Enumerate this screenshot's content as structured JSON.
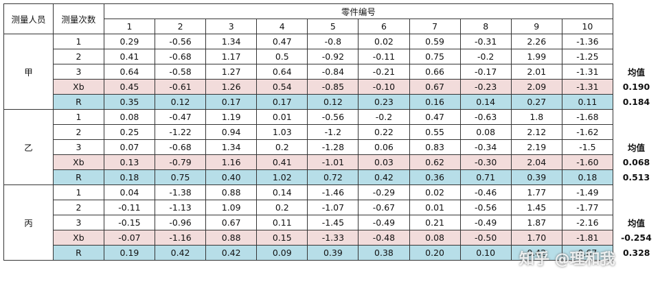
{
  "header": {
    "person": "测量人员",
    "count": "测量次数",
    "part_no": "零件编号",
    "parts": [
      "1",
      "2",
      "3",
      "4",
      "5",
      "6",
      "7",
      "8",
      "9",
      "10"
    ]
  },
  "groups": [
    {
      "person": "甲",
      "rows": [
        {
          "label": "1",
          "values": [
            "0.29",
            "-0.56",
            "1.34",
            "0.47",
            "-0.8",
            "0.02",
            "0.59",
            "-0.31",
            "2.26",
            "-1.36"
          ]
        },
        {
          "label": "2",
          "values": [
            "0.41",
            "-0.68",
            "1.17",
            "0.5",
            "-0.92",
            "-0.11",
            "0.75",
            "-0.2",
            "1.99",
            "-1.25"
          ]
        },
        {
          "label": "3",
          "values": [
            "0.64",
            "-0.58",
            "1.27",
            "0.64",
            "-0.84",
            "-0.21",
            "0.66",
            "-0.17",
            "2.01",
            "-1.31"
          ]
        },
        {
          "label": "Xb",
          "values": [
            "0.45",
            "-0.61",
            "1.26",
            "0.54",
            "-0.85",
            "-0.10",
            "0.67",
            "-0.23",
            "2.09",
            "-1.31"
          ]
        },
        {
          "label": "R",
          "values": [
            "0.35",
            "0.12",
            "0.17",
            "0.17",
            "0.12",
            "0.23",
            "0.16",
            "0.14",
            "0.27",
            "0.11"
          ]
        }
      ],
      "mean_label": "均值",
      "xbar_mean": "0.190",
      "r_mean": "0.184"
    },
    {
      "person": "乙",
      "rows": [
        {
          "label": "1",
          "values": [
            "0.08",
            "-0.47",
            "1.19",
            "0.01",
            "-0.56",
            "-0.2",
            "0.47",
            "-0.63",
            "1.8",
            "-1.68"
          ]
        },
        {
          "label": "2",
          "values": [
            "0.25",
            "-1.22",
            "0.94",
            "1.03",
            "-1.2",
            "0.22",
            "0.55",
            "0.08",
            "2.12",
            "-1.62"
          ]
        },
        {
          "label": "3",
          "values": [
            "0.07",
            "-0.68",
            "1.34",
            "0.2",
            "-1.28",
            "0.06",
            "0.83",
            "-0.34",
            "2.19",
            "-1.5"
          ]
        },
        {
          "label": "Xb",
          "values": [
            "0.13",
            "-0.79",
            "1.16",
            "0.41",
            "-1.01",
            "0.03",
            "0.62",
            "-0.30",
            "2.04",
            "-1.60"
          ]
        },
        {
          "label": "R",
          "values": [
            "0.18",
            "0.75",
            "0.40",
            "1.02",
            "0.72",
            "0.42",
            "0.36",
            "0.71",
            "0.39",
            "0.18"
          ]
        }
      ],
      "mean_label": "均值",
      "xbar_mean": "0.068",
      "r_mean": "0.513"
    },
    {
      "person": "丙",
      "rows": [
        {
          "label": "1",
          "values": [
            "0.04",
            "-1.38",
            "0.88",
            "0.14",
            "-1.46",
            "-0.29",
            "0.02",
            "-0.46",
            "1.77",
            "-1.49"
          ]
        },
        {
          "label": "2",
          "values": [
            "-0.11",
            "-1.13",
            "1.09",
            "0.2",
            "-1.07",
            "-0.67",
            "0.01",
            "-0.56",
            "1.45",
            "-1.77"
          ]
        },
        {
          "label": "3",
          "values": [
            "-0.15",
            "-0.96",
            "0.67",
            "0.11",
            "-1.45",
            "-0.49",
            "0.21",
            "-0.49",
            "1.87",
            "-2.16"
          ]
        },
        {
          "label": "Xb",
          "values": [
            "-0.07",
            "-1.16",
            "0.88",
            "0.15",
            "-1.33",
            "-0.48",
            "0.08",
            "-0.50",
            "1.70",
            "-1.81"
          ]
        },
        {
          "label": "R",
          "values": [
            "0.19",
            "0.42",
            "0.42",
            "0.09",
            "0.39",
            "0.38",
            "0.20",
            "0.10",
            "0.42",
            "0.67"
          ]
        }
      ],
      "mean_label": "均值",
      "xbar_mean": "-0.254",
      "r_mean": "0.328"
    }
  ],
  "watermark": "知乎 @理和我"
}
